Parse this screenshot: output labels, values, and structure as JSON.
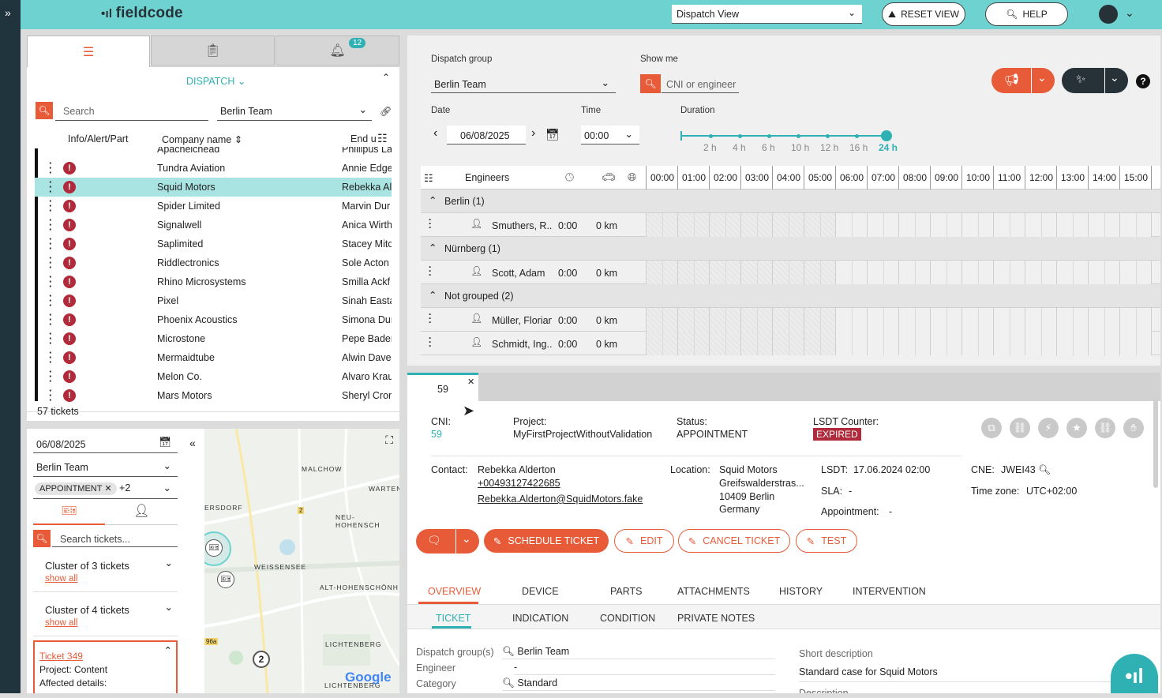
{
  "app": {
    "logo": "fieldcode",
    "view_select": "Dispatch View",
    "reset_view": "RESET VIEW",
    "help": "HELP"
  },
  "left_panel": {
    "notif_count": "12",
    "dispatch_label": "DISPATCH",
    "search_placeholder": "Search",
    "team_select": "Berlin Team",
    "col_info": "Info/Alert/Part",
    "col_company": "Company name",
    "col_enduser": "End u",
    "partial_top": {
      "company": "Apacheichead",
      "enduser": "Phillipus La"
    },
    "rows": [
      {
        "company": "Tundra Aviation",
        "enduser": "Annie Edge"
      },
      {
        "company": "Squid Motors",
        "enduser": "Rebekka Al"
      },
      {
        "company": "Spider Limited",
        "enduser": "Marvin Dur"
      },
      {
        "company": "Signalwell",
        "enduser": "Anica Wirth"
      },
      {
        "company": "Saplimited",
        "enduser": "Stacey Mitc"
      },
      {
        "company": "Riddlectronics",
        "enduser": "Sole Acton"
      },
      {
        "company": "Rhino Microsystems",
        "enduser": "Smilla Ackf"
      },
      {
        "company": "Pixel",
        "enduser": "Sinah Easta"
      },
      {
        "company": "Phoenix Acoustics",
        "enduser": "Simona Dur"
      },
      {
        "company": "Microstone",
        "enduser": "Pepe Bader"
      },
      {
        "company": "Mermaidtube",
        "enduser": "Alwin Daver"
      },
      {
        "company": "Melon Co.",
        "enduser": "Alvaro Kraul"
      },
      {
        "company": "Mars Motors",
        "enduser": "Sheryl Cron"
      }
    ],
    "ticket_count": "57 tickets"
  },
  "map_panel": {
    "date": "06/08/2025",
    "team": "Berlin Team",
    "status_chip": "APPOINTMENT",
    "status_more": "+2",
    "search_placeholder": "Search tickets...",
    "clusters": [
      {
        "label": "Cluster of 3 tickets",
        "link": "show all"
      },
      {
        "label": "Cluster of 4 tickets",
        "link": "show all"
      }
    ],
    "ticket_card": {
      "title": "Ticket 349",
      "project": "Project: Content",
      "affected": "Affected details:"
    },
    "map_labels": [
      "MALCHOW",
      "WARTEN",
      "ERSDORF",
      "NEU-HOHENSCH",
      "WEISSENSEE",
      "ALT-HOHENSCHÖNH",
      "LICHTENBERG",
      "LICHTENBERG"
    ],
    "cluster_count": "2",
    "road_numbers": [
      "2",
      "96a"
    ],
    "map_brand": "Google"
  },
  "dispatch": {
    "group_label": "Dispatch group",
    "group_value": "Berlin Team",
    "show_me_label": "Show me",
    "show_me_placeholder": "CNI or engineer",
    "date_label": "Date",
    "date_value": "06/08/2025",
    "time_label": "Time",
    "time_value": "00:00",
    "duration_label": "Duration",
    "durations": [
      "2 h",
      "4 h",
      "6 h",
      "10 h",
      "12 h",
      "16 h",
      "24 h"
    ],
    "engineers_col": "Engineers",
    "hours": [
      "00:00",
      "01:00",
      "02:00",
      "03:00",
      "04:00",
      "05:00",
      "06:00",
      "07:00",
      "08:00",
      "09:00",
      "10:00",
      "11:00",
      "12:00",
      "13:00",
      "14:00",
      "15:00"
    ],
    "groups": [
      {
        "name": "Berlin (1)",
        "engineers": [
          {
            "name": "Smuthers, R...",
            "time": "0:00",
            "km": "0 km"
          }
        ]
      },
      {
        "name": "Nürnberg (1)",
        "engineers": [
          {
            "name": "Scott, Adam",
            "time": "0:00",
            "km": "0 km"
          }
        ]
      },
      {
        "name": "Not grouped (2)",
        "engineers": [
          {
            "name": "Müller, Florian",
            "time": "0:00",
            "km": "0 km"
          },
          {
            "name": "Schmidt, Ing...",
            "time": "0:00",
            "km": "0 km"
          }
        ]
      }
    ]
  },
  "ticket": {
    "tab_label": "59",
    "cni_label": "CNI:",
    "cni_value": "59",
    "project_label": "Project:",
    "project_value": "MyFirstProjectWithoutValidation",
    "status_label": "Status:",
    "status_value": "APPOINTMENT",
    "lsdt_counter_label": "LSDT Counter:",
    "lsdt_counter_value": "EXPIRED",
    "contact_label": "Contact:",
    "contact_name": "Rebekka Alderton",
    "contact_phone": "+00493127422685",
    "contact_email": "Rebekka.Alderton@SquidMotors.fake",
    "location_label": "Location:",
    "location_lines": [
      "Squid Motors",
      "Greifswalderstras...",
      "10409 Berlin",
      "Germany"
    ],
    "lsdt_label": "LSDT:",
    "lsdt_value": "17.06.2024 02:00",
    "sla_label": "SLA:",
    "sla_value": "-",
    "appointment_label": "Appointment:",
    "appointment_value": "-",
    "cne_label": "CNE:",
    "cne_value": "JWEI43",
    "tz_label": "Time zone:",
    "tz_value": "UTC+02:00",
    "buttons": {
      "schedule": "SCHEDULE TICKET",
      "edit": "EDIT",
      "cancel": "CANCEL TICKET",
      "test": "TEST"
    },
    "tabs1": [
      "OVERVIEW",
      "DEVICE",
      "PARTS",
      "ATTACHMENTS",
      "HISTORY",
      "INTERVENTION"
    ],
    "tabs2": [
      "TICKET",
      "INDICATION",
      "CONDITION",
      "PRIVATE NOTES"
    ],
    "fields": {
      "dispatch_group_label": "Dispatch group(s)",
      "dispatch_group_value": "Berlin Team",
      "engineer_label": "Engineer",
      "engineer_value": "-",
      "category_label": "Category",
      "category_value": "Standard",
      "short_desc_label": "Short description",
      "short_desc_value": "Standard case for Squid Motors",
      "description_label": "Description"
    }
  },
  "colors": {
    "teal": "#6ed3d0",
    "accent": "#2fb0b3",
    "orange": "#e85b38",
    "alert": "#b02a3b"
  }
}
